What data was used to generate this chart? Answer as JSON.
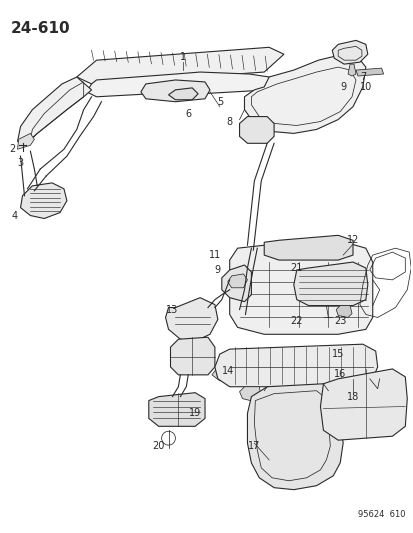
{
  "title": "24-610",
  "footer": "95624  610",
  "bg_color": "#ffffff",
  "line_color": "#2a2a2a",
  "title_fontsize": 11,
  "label_fontsize": 7,
  "fig_width": 4.14,
  "fig_height": 5.33,
  "dpi": 100
}
